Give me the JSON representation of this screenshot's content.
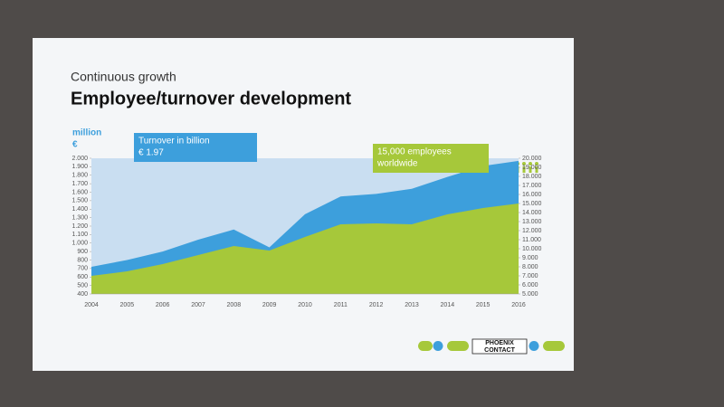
{
  "chart_data": {
    "type": "area",
    "subtitle": "Continuous growth",
    "title": "Employee/turnover development",
    "ylabel": [
      "million",
      "€"
    ],
    "categories": [
      "2004",
      "2005",
      "2006",
      "2007",
      "2008",
      "2009",
      "2010",
      "2011",
      "2012",
      "2013",
      "2014",
      "2015",
      "2016"
    ],
    "series": [
      {
        "name": "Turnover in billion",
        "color": "#3d9fdc",
        "values": [
          720,
          800,
          900,
          1040,
          1160,
          950,
          1340,
          1550,
          1580,
          1640,
          1780,
          1910,
          1970
        ]
      },
      {
        "name": "Employees",
        "color": "#a6c83a",
        "axis": "y2",
        "values": [
          7000,
          7500,
          8300,
          9300,
          10300,
          9800,
          11300,
          12700,
          12800,
          12700,
          13800,
          14500,
          15000
        ]
      }
    ],
    "annotations": [
      {
        "lines": [
          "Turnover in billion",
          "€ 1.97"
        ],
        "color": "#3d9fdc"
      },
      {
        "lines": [
          "15,000 employees",
          "worldwide"
        ],
        "color": "#a6c83a"
      }
    ],
    "ylim": [
      400,
      2000
    ],
    "yticks": [
      {
        "value": 2000,
        "label": "2.000"
      },
      {
        "value": 1900,
        "label": "1.900"
      },
      {
        "value": 1800,
        "label": "1.800"
      },
      {
        "value": 1700,
        "label": "1.700"
      },
      {
        "value": 1600,
        "label": "1.600"
      },
      {
        "value": 1500,
        "label": "1.500"
      },
      {
        "value": 1400,
        "label": "1.400"
      },
      {
        "value": 1300,
        "label": "1.300"
      },
      {
        "value": 1200,
        "label": "1.200"
      },
      {
        "value": 1100,
        "label": "1.100"
      },
      {
        "value": 1000,
        "label": "1.000"
      },
      900,
      800,
      700,
      600,
      500,
      400
    ],
    "y2lim": [
      5000,
      20000
    ],
    "y2ticks": [
      {
        "value": 20000,
        "label": "20.000"
      },
      {
        "value": 19000,
        "label": "19.000"
      },
      {
        "value": 18000,
        "label": "18.000"
      },
      {
        "value": 17000,
        "label": "17.000"
      },
      {
        "value": 16000,
        "label": "16.000"
      },
      {
        "value": 15000,
        "label": "15.000"
      },
      {
        "value": 14000,
        "label": "14.000"
      },
      {
        "value": 13000,
        "label": "13.000"
      },
      {
        "value": 12000,
        "label": "12.000"
      },
      {
        "value": 11000,
        "label": "11.000"
      },
      {
        "value": 10000,
        "label": "10.000"
      },
      {
        "value": 9000,
        "label": "9.000"
      },
      {
        "value": 8000,
        "label": "8.000"
      },
      {
        "value": 7000,
        "label": "7.000"
      },
      {
        "value": 6000,
        "label": "6.000"
      },
      {
        "value": 5000,
        "label": "5.000"
      }
    ],
    "logo": [
      "PHOENIX",
      "CONTACT"
    ]
  }
}
